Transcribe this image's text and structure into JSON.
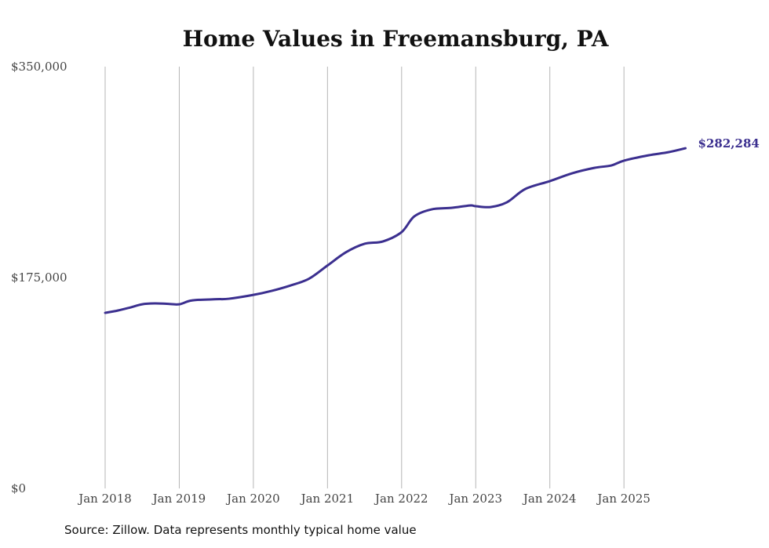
{
  "chart_data": {
    "type": "line",
    "title": "Home Values in Freemansburg, PA",
    "xlabel": "",
    "ylabel": "",
    "ylim": [
      0,
      350000
    ],
    "y_ticks": [
      0,
      175000,
      350000
    ],
    "y_tick_labels": [
      "$0",
      "$175,000",
      "$350,000"
    ],
    "x_tick_labels": [
      "Jan 2018",
      "Jan 2019",
      "Jan 2020",
      "Jan 2021",
      "Jan 2022",
      "Jan 2023",
      "Jan 2024",
      "Jan 2025"
    ],
    "x_ticks_year": [
      2018,
      2019,
      2020,
      2021,
      2022,
      2023,
      2024,
      2025
    ],
    "grid": "vertical",
    "legend": "none",
    "color": "#3b2f8f",
    "end_label": "$282,284",
    "series": [
      {
        "name": "Typical home value",
        "x": [
          2018.0,
          2018.17,
          2018.33,
          2018.5,
          2018.67,
          2018.83,
          2019.0,
          2019.17,
          2019.5,
          2019.67,
          2020.0,
          2020.25,
          2020.5,
          2020.75,
          2021.0,
          2021.25,
          2021.5,
          2021.75,
          2022.0,
          2022.17,
          2022.4,
          2022.67,
          2022.92,
          2023.0,
          2023.2,
          2023.42,
          2023.67,
          2024.0,
          2024.3,
          2024.6,
          2024.83,
          2025.0,
          2025.33,
          2025.6,
          2025.83
        ],
        "values": [
          145700,
          147600,
          150000,
          152800,
          153500,
          153200,
          152800,
          156000,
          157000,
          157400,
          160600,
          164000,
          168400,
          174000,
          185000,
          196000,
          203000,
          205000,
          212700,
          225700,
          231500,
          232800,
          234800,
          234200,
          233500,
          237400,
          248500,
          255000,
          261500,
          266000,
          268000,
          272000,
          276400,
          279000,
          282284
        ]
      }
    ]
  },
  "source": "Source: Zillow. Data represents monthly typical home value"
}
